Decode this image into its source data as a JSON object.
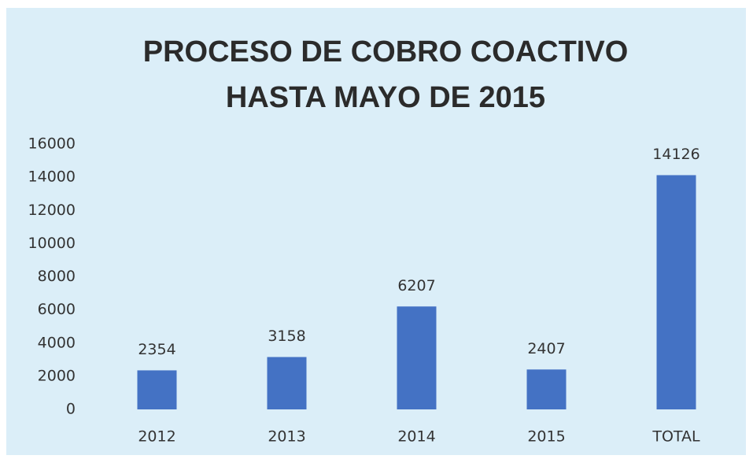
{
  "chart_data": {
    "type": "bar",
    "title": [
      "PROCESO DE COBRO COACTIVO",
      "HASTA MAYO DE 2015"
    ],
    "categories": [
      "2012",
      "2013",
      "2014",
      "2015",
      "TOTAL"
    ],
    "values": [
      2354,
      3158,
      6207,
      2407,
      14126
    ],
    "color": "#4472c4",
    "ylim": [
      0,
      16000
    ],
    "yticks": [
      0,
      2000,
      4000,
      6000,
      8000,
      10000,
      12000,
      14000,
      16000
    ],
    "grid": false,
    "data_labels": true
  }
}
